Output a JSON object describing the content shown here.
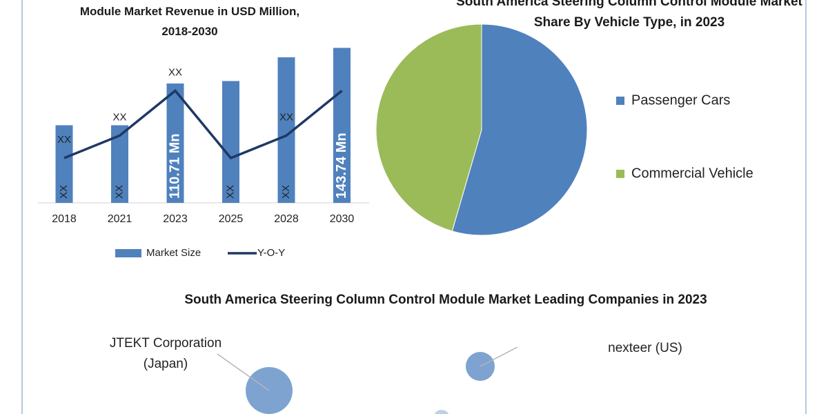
{
  "chart_data": [
    {
      "type": "combo",
      "title": "Module Market Revenue in USD Million, 2018-2030",
      "categories": [
        "2018",
        "2021",
        "2023",
        "2025",
        "2028",
        "2030"
      ],
      "series": [
        {
          "name": "Market Size",
          "type": "bar",
          "color": "#4f81bd",
          "values": [
            72,
            72,
            110.71,
            113,
            135,
            143.74
          ],
          "value_labels": [
            "XX",
            "XX",
            "110.71 Mn",
            "XX",
            "XX",
            "143.74 Mn"
          ]
        },
        {
          "name": "Y-O-Y",
          "type": "line",
          "axis": "y2",
          "color": "#1f3864",
          "values": [
            2.6,
            3.9,
            6.5,
            2.6,
            3.9,
            6.5
          ],
          "value_labels": [
            "XX",
            "XX",
            "XX",
            null,
            "XX",
            null
          ]
        }
      ],
      "ylim": [
        0,
        160
      ],
      "y2lim": [
        0,
        10
      ],
      "legend": "bottom"
    },
    {
      "type": "pie",
      "title": "South America Steering Column Control Module Market Share By Vehicle Type, in 2023",
      "categories": [
        "Passenger Cars",
        "Commercial Vehicle"
      ],
      "values": [
        54.5,
        45.5
      ],
      "colors": [
        "#4f81bd",
        "#9bbb59"
      ],
      "legend": "right"
    },
    {
      "type": "bubble",
      "title": "South America Steering Column Control Module Market Leading Companies in 2023",
      "categories": [
        "JTEKT Corporation (Japan)",
        "nexteer (US)",
        null
      ],
      "values": [
        34,
        21,
        12
      ],
      "color": "#7ea3d1"
    }
  ]
}
